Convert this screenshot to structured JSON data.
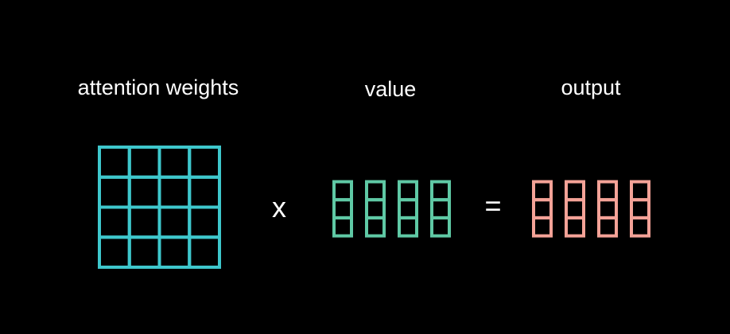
{
  "labels": {
    "attention_weights": "attention weights",
    "value": "value",
    "output": "output"
  },
  "operators": {
    "multiply": "x",
    "equals": "="
  },
  "colors": {
    "background": "#000000",
    "text": "#ffffff",
    "attention_weights_grid": "#3ec7cc",
    "value_vectors": "#5fc9a5",
    "output_vectors": "#f4a297"
  },
  "attention_weights_matrix": {
    "rows": 4,
    "cols": 4
  },
  "value_vectors": {
    "count": 4,
    "cells_per_vector": 3
  },
  "output_vectors": {
    "count": 4,
    "cells_per_vector": 3
  }
}
